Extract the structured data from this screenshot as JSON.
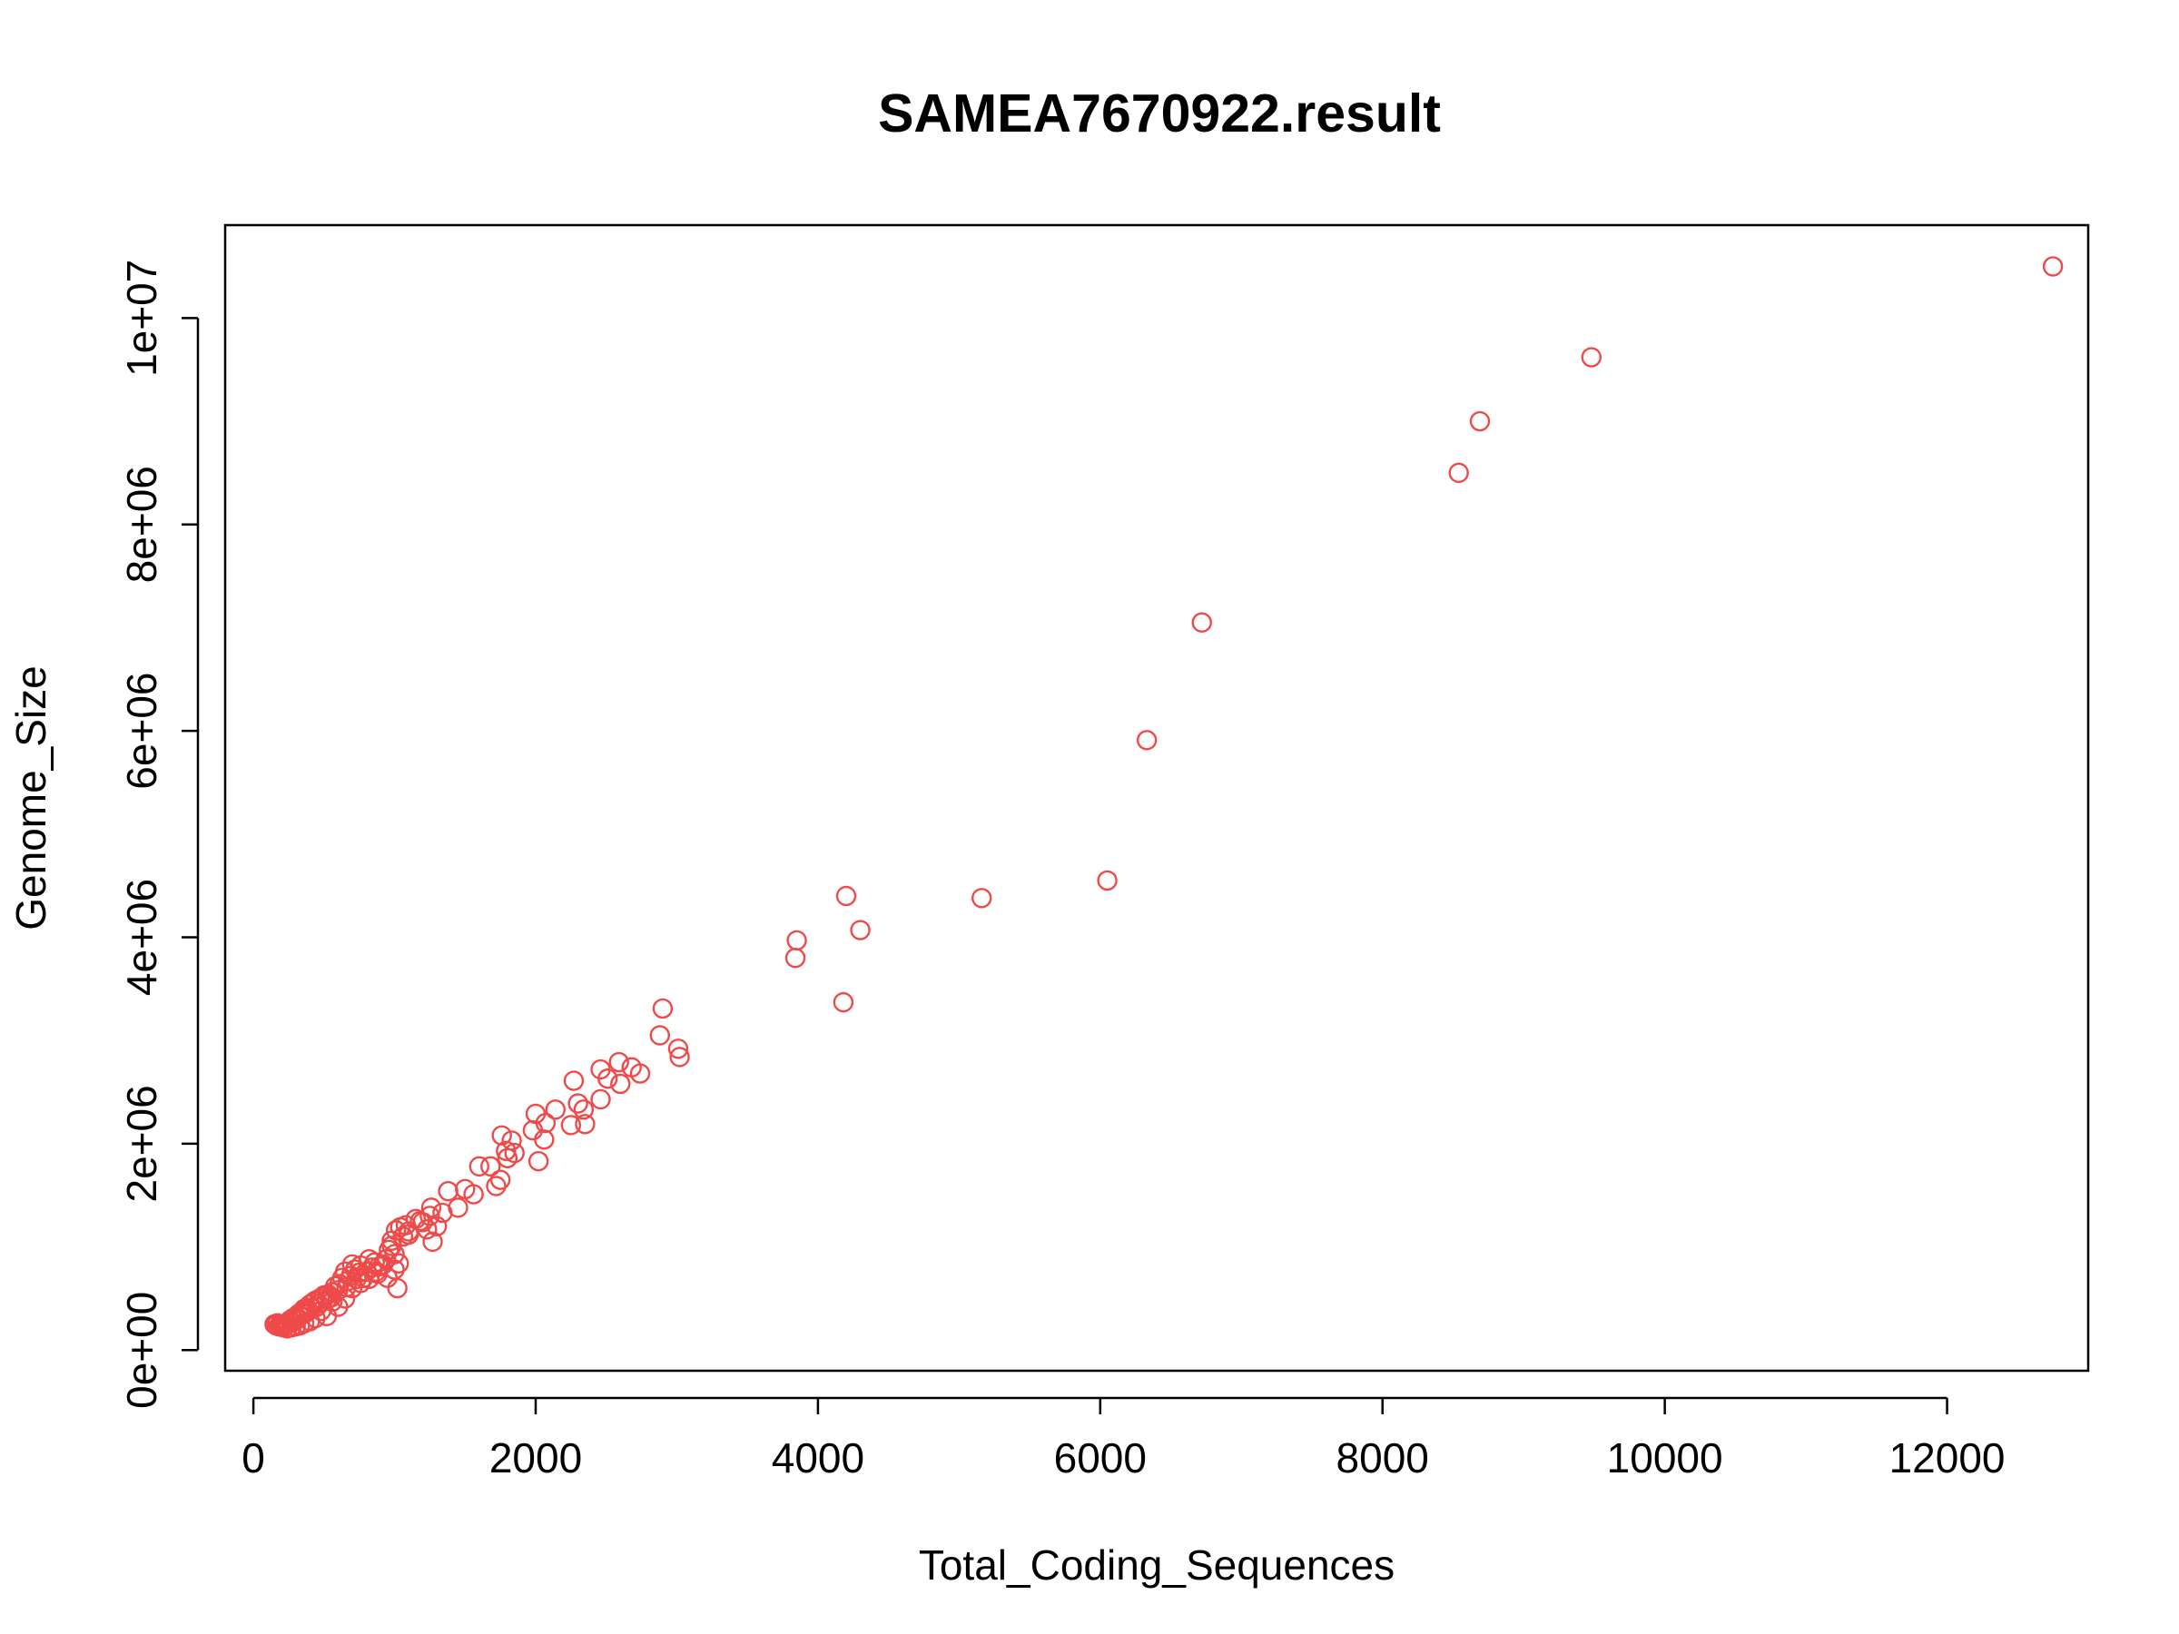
{
  "chart_data": {
    "type": "scatter",
    "title": "SAMEA7670922.result",
    "xlabel": "Total_Coding_Sequences",
    "ylabel": "Genome_Size",
    "xlim": [
      -200,
      13000
    ],
    "ylim": [
      -200000,
      10900000
    ],
    "x_ticks": [
      0,
      2000,
      4000,
      6000,
      8000,
      10000,
      12000
    ],
    "x_tick_labels": [
      "0",
      "2000",
      "4000",
      "6000",
      "8000",
      "10000",
      "12000"
    ],
    "y_ticks": [
      0,
      2000000,
      4000000,
      6000000,
      8000000,
      10000000
    ],
    "y_tick_labels": [
      "0e+00",
      "2e+06",
      "4e+06",
      "6e+06",
      "8e+06",
      "1e+07"
    ],
    "grid": false,
    "legend": "none",
    "marker": "open-circle",
    "color": "#ef4a4a",
    "points": [
      [
        12750,
        10500000
      ],
      [
        9480,
        9620000
      ],
      [
        8690,
        9000000
      ],
      [
        8540,
        8500000
      ],
      [
        6720,
        7050000
      ],
      [
        6330,
        5910000
      ],
      [
        6050,
        4550000
      ],
      [
        5160,
        4380000
      ],
      [
        4200,
        4400000
      ],
      [
        4300,
        4070000
      ],
      [
        3850,
        3970000
      ],
      [
        3840,
        3800000
      ],
      [
        4180,
        3370000
      ],
      [
        2900,
        3310000
      ],
      [
        3010,
        2920000
      ],
      [
        2880,
        3050000
      ],
      [
        3020,
        2840000
      ],
      [
        2590,
        2790000
      ],
      [
        2460,
        2720000
      ],
      [
        2680,
        2740000
      ],
      [
        2740,
        2680000
      ],
      [
        2510,
        2630000
      ],
      [
        2600,
        2580000
      ],
      [
        2270,
        2610000
      ],
      [
        2300,
        2390000
      ],
      [
        2340,
        2330000
      ],
      [
        2460,
        2430000
      ],
      [
        2350,
        2190000
      ],
      [
        2250,
        2180000
      ],
      [
        2140,
        2330000
      ],
      [
        2070,
        2200000
      ],
      [
        2000,
        2290000
      ],
      [
        1980,
        2130000
      ],
      [
        2060,
        2040000
      ],
      [
        2020,
        1830000
      ],
      [
        1760,
        2080000
      ],
      [
        1830,
        2030000
      ],
      [
        1790,
        1930000
      ],
      [
        1850,
        1910000
      ],
      [
        1800,
        1860000
      ],
      [
        1750,
        1650000
      ],
      [
        1680,
        1780000
      ],
      [
        1720,
        1590000
      ],
      [
        1600,
        1780000
      ],
      [
        1560,
        1510000
      ],
      [
        1500,
        1560000
      ],
      [
        1380,
        1540000
      ],
      [
        1450,
        1380000
      ],
      [
        1340,
        1330000
      ],
      [
        1300,
        1200000
      ],
      [
        1260,
        1380000
      ],
      [
        1250,
        1300000
      ],
      [
        1230,
        1170000
      ],
      [
        1270,
        1050000
      ],
      [
        1200,
        1240000
      ],
      [
        1150,
        1270000
      ],
      [
        1100,
        1150000
      ],
      [
        1080,
        1210000
      ],
      [
        1040,
        1190000
      ],
      [
        1010,
        1160000
      ],
      [
        1060,
        1100000
      ],
      [
        980,
        1060000
      ],
      [
        1000,
        930000
      ],
      [
        1030,
        840000
      ],
      [
        980,
        1010000
      ],
      [
        960,
        970000
      ],
      [
        940,
        880000
      ],
      [
        920,
        830000
      ],
      [
        1020,
        600000
      ],
      [
        950,
        700000
      ],
      [
        890,
        810000
      ],
      [
        870,
        760000
      ],
      [
        860,
        850000
      ],
      [
        840,
        800000
      ],
      [
        820,
        880000
      ],
      [
        800,
        760000
      ],
      [
        780,
        700000
      ],
      [
        760,
        820000
      ],
      [
        750,
        750000
      ],
      [
        730,
        690000
      ],
      [
        720,
        780000
      ],
      [
        700,
        830000
      ],
      [
        690,
        720000
      ],
      [
        670,
        670000
      ],
      [
        660,
        610000
      ],
      [
        650,
        760000
      ],
      [
        630,
        700000
      ],
      [
        610,
        640000
      ],
      [
        600,
        580000
      ],
      [
        580,
        620000
      ],
      [
        560,
        560000
      ],
      [
        550,
        510000
      ],
      [
        530,
        540000
      ],
      [
        520,
        490000
      ],
      [
        500,
        530000
      ],
      [
        490,
        470000
      ],
      [
        470,
        500000
      ],
      [
        460,
        450000
      ],
      [
        450,
        420000
      ],
      [
        440,
        480000
      ],
      [
        420,
        460000
      ],
      [
        410,
        410000
      ],
      [
        400,
        440000
      ],
      [
        390,
        380000
      ],
      [
        380,
        410000
      ],
      [
        370,
        360000
      ],
      [
        360,
        400000
      ],
      [
        350,
        350000
      ],
      [
        340,
        370000
      ],
      [
        330,
        330000
      ],
      [
        320,
        350000
      ],
      [
        310,
        300000
      ],
      [
        300,
        320000
      ],
      [
        290,
        290000
      ],
      [
        280,
        310000
      ],
      [
        270,
        270000
      ],
      [
        260,
        290000
      ],
      [
        250,
        260000
      ],
      [
        240,
        250000
      ],
      [
        230,
        240000
      ],
      [
        220,
        230000
      ],
      [
        210,
        250000
      ],
      [
        200,
        240000
      ],
      [
        190,
        250000
      ],
      [
        180,
        230000
      ],
      [
        170,
        260000
      ],
      [
        160,
        240000
      ],
      [
        150,
        250000
      ],
      [
        520,
        330000
      ],
      [
        480,
        380000
      ],
      [
        440,
        310000
      ],
      [
        400,
        280000
      ],
      [
        360,
        260000
      ],
      [
        330,
        240000
      ],
      [
        300,
        230000
      ],
      [
        270,
        220000
      ],
      [
        240,
        210000
      ],
      [
        210,
        220000
      ],
      [
        600,
        420000
      ],
      [
        560,
        470000
      ],
      [
        650,
        500000
      ],
      [
        700,
        600000
      ],
      [
        760,
        650000
      ],
      [
        820,
        690000
      ],
      [
        880,
        740000
      ],
      [
        1000,
        780000
      ],
      [
        1100,
        1120000
      ],
      [
        1180,
        1250000
      ]
    ]
  }
}
